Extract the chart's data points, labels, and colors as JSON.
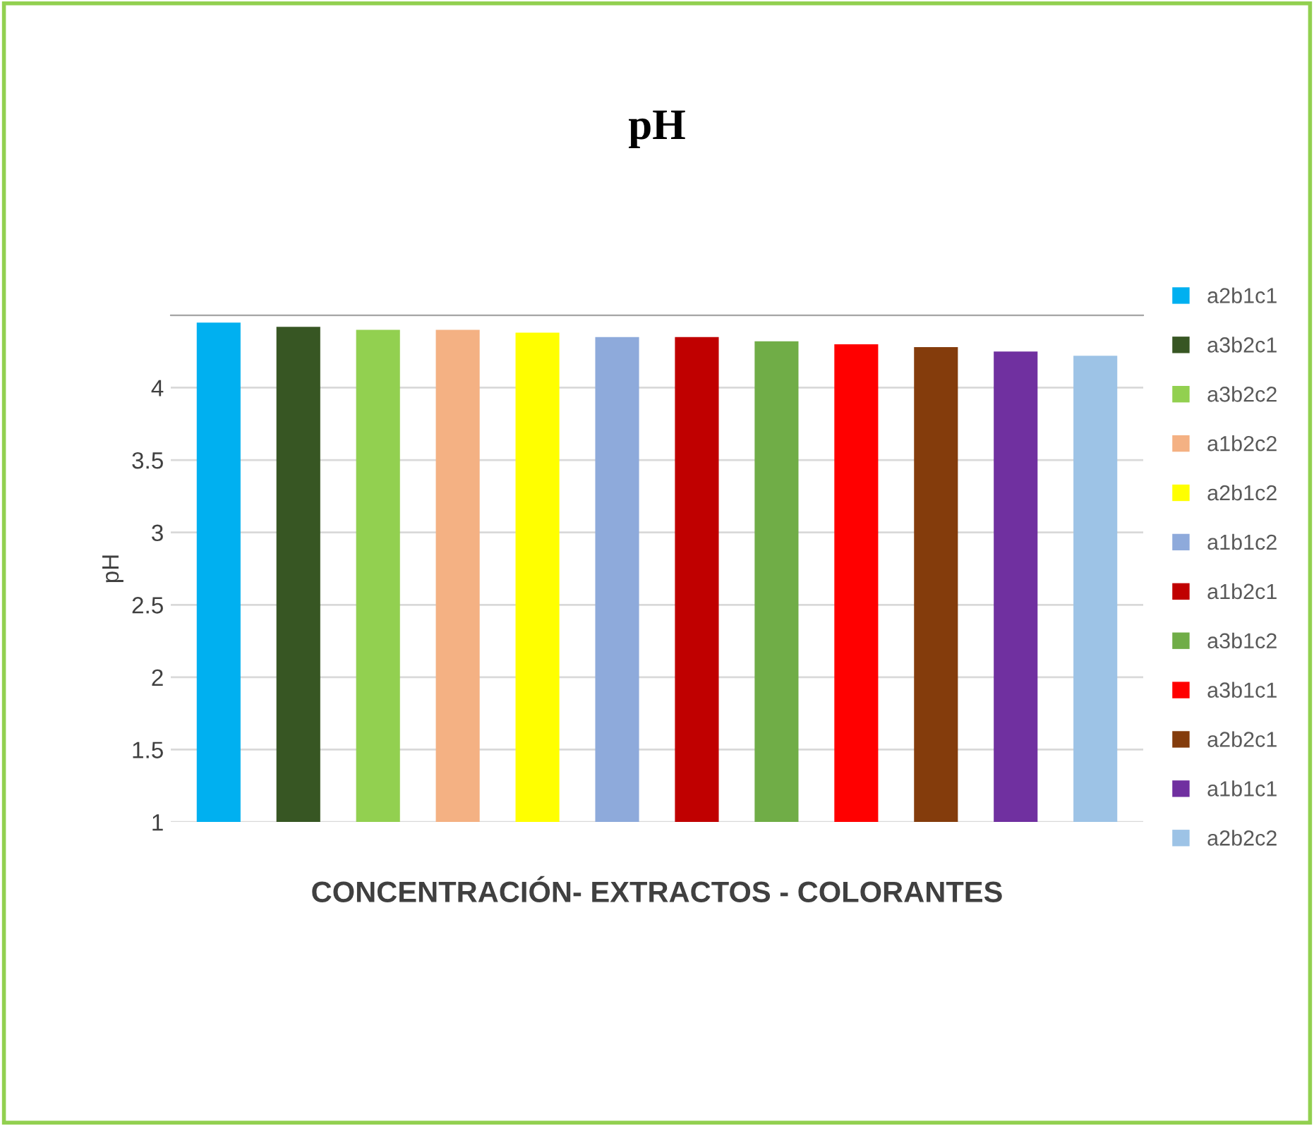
{
  "chart_data": {
    "type": "bar",
    "title": "pH",
    "xlabel": "CONCENTRACIÓN- EXTRACTOS - COLORANTES",
    "ylabel": "pH",
    "categories": [
      null,
      null,
      null,
      null,
      null,
      null,
      null,
      null,
      null,
      null,
      null,
      null
    ],
    "series": [
      {
        "name": "a2b1c1",
        "color": "#00b0f0",
        "values": [
          4.45,
          null,
          null,
          null,
          null,
          null,
          null,
          null,
          null,
          null,
          null,
          null
        ]
      },
      {
        "name": "a3b2c1",
        "color": "#375623",
        "values": [
          null,
          4.42,
          null,
          null,
          null,
          null,
          null,
          null,
          null,
          null,
          null,
          null
        ]
      },
      {
        "name": "a3b2c2",
        "color": "#92d050",
        "values": [
          null,
          null,
          4.4,
          null,
          null,
          null,
          null,
          null,
          null,
          null,
          null,
          null
        ]
      },
      {
        "name": "a1b2c2",
        "color": "#f4b183",
        "values": [
          null,
          null,
          null,
          4.4,
          null,
          null,
          null,
          null,
          null,
          null,
          null,
          null
        ]
      },
      {
        "name": "a2b1c2",
        "color": "#ffff00",
        "values": [
          null,
          null,
          null,
          null,
          4.38,
          null,
          null,
          null,
          null,
          null,
          null,
          null
        ]
      },
      {
        "name": "a1b1c2",
        "color": "#8eaadb",
        "values": [
          null,
          null,
          null,
          null,
          null,
          4.35,
          null,
          null,
          null,
          null,
          null,
          null
        ]
      },
      {
        "name": "a1b2c1",
        "color": "#c00000",
        "values": [
          null,
          null,
          null,
          null,
          null,
          null,
          4.35,
          null,
          null,
          null,
          null,
          null
        ]
      },
      {
        "name": "a3b1c2",
        "color": "#70ad47",
        "values": [
          null,
          null,
          null,
          null,
          null,
          null,
          null,
          4.32,
          null,
          null,
          null,
          null
        ]
      },
      {
        "name": "a3b1c1",
        "color": "#ff0000",
        "values": [
          null,
          null,
          null,
          null,
          null,
          null,
          null,
          null,
          4.3,
          null,
          null,
          null
        ]
      },
      {
        "name": "a2b2c1",
        "color": "#843c0c",
        "values": [
          null,
          null,
          null,
          null,
          null,
          null,
          null,
          null,
          null,
          4.28,
          null,
          null
        ]
      },
      {
        "name": "a1b1c1",
        "color": "#7030a0",
        "values": [
          null,
          null,
          null,
          null,
          null,
          null,
          null,
          null,
          null,
          null,
          4.25,
          null
        ]
      },
      {
        "name": "a2b2c2",
        "color": "#9dc3e6",
        "values": [
          null,
          null,
          null,
          null,
          null,
          null,
          null,
          null,
          null,
          null,
          null,
          4.22
        ]
      }
    ],
    "ylim": [
      1,
      4.5
    ],
    "yticks": [
      1,
      1.5,
      2,
      2.5,
      3,
      3.5,
      4,
      {
        "value": 4.5,
        "label": null
      }
    ],
    "grid": "y",
    "legend": "right",
    "tick_labels": "y"
  }
}
